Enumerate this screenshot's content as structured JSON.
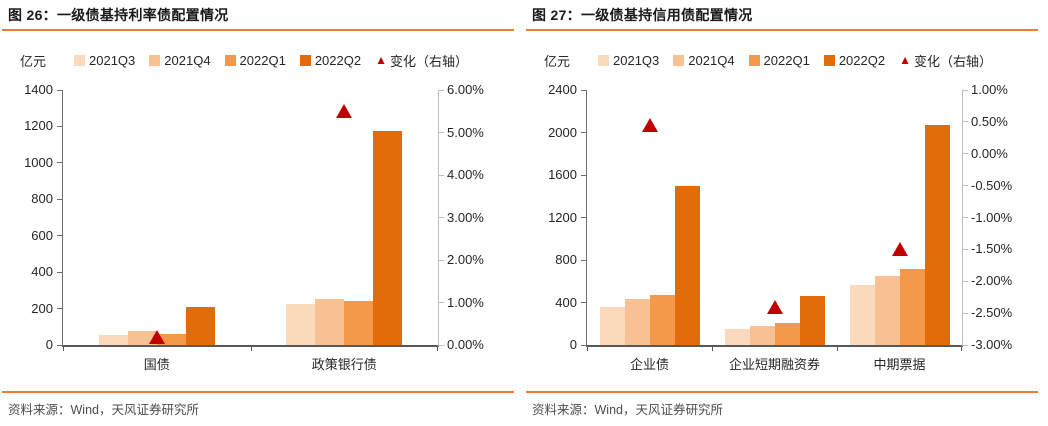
{
  "colors": {
    "rule_orange": "#ED7D31",
    "title_text": "#1a1a1a",
    "axis_text": "#262626",
    "source_text": "#4d4d4d",
    "left_axis_line": "#6e6e6e",
    "right_axis_line": "#bfbfbf",
    "bottom_axis_line": "#595959",
    "series_2021q3": "#FAD9BD",
    "series_2021q4": "#F8C193",
    "series_2022q1": "#F4984A",
    "series_2022q2": "#E26C09",
    "change_triangle": "#C00000"
  },
  "chart_data": [
    {
      "type": "bar",
      "title": "图 26：一级债基持利率债配置情况",
      "unit": "亿元",
      "source_note": "资料来源：Wind，天风证券研究所",
      "categories": [
        "国债",
        "政策银行债"
      ],
      "series": [
        {
          "name": "2021Q3",
          "type": "bar",
          "axis": "left",
          "color": "#FAD9BD",
          "values": [
            55,
            225
          ]
        },
        {
          "name": "2021Q4",
          "type": "bar",
          "axis": "left",
          "color": "#F8C193",
          "values": [
            75,
            250
          ]
        },
        {
          "name": "2022Q1",
          "type": "bar",
          "axis": "left",
          "color": "#F4984A",
          "values": [
            60,
            240
          ]
        },
        {
          "name": "2022Q2",
          "type": "bar",
          "axis": "left",
          "color": "#E26C09",
          "values": [
            210,
            1175
          ]
        },
        {
          "name": "变化（右轴）",
          "type": "triangle",
          "axis": "right",
          "color": "#C00000",
          "values": [
            0.2,
            5.5
          ]
        }
      ],
      "left_axis": {
        "min": 0,
        "max": 1400,
        "step": 200
      },
      "right_axis": {
        "min": 0,
        "max": 6,
        "step": 1,
        "format": "percent2"
      },
      "grid": false,
      "legend_position": "top"
    },
    {
      "type": "bar",
      "title": "图 27：一级债基持信用债配置情况",
      "unit": "亿元",
      "source_note": "资料来源：Wind，天风证券研究所",
      "categories": [
        "企业债",
        "企业短期融资券",
        "中期票据"
      ],
      "series": [
        {
          "name": "2021Q3",
          "type": "bar",
          "axis": "left",
          "color": "#FAD9BD",
          "values": [
            360,
            150,
            565
          ]
        },
        {
          "name": "2021Q4",
          "type": "bar",
          "axis": "left",
          "color": "#F8C193",
          "values": [
            430,
            180,
            650
          ]
        },
        {
          "name": "2022Q1",
          "type": "bar",
          "axis": "left",
          "color": "#F4984A",
          "values": [
            470,
            210,
            715
          ]
        },
        {
          "name": "2022Q2",
          "type": "bar",
          "axis": "left",
          "color": "#E26C09",
          "values": [
            1495,
            460,
            2070
          ]
        },
        {
          "name": "变化（右轴）",
          "type": "triangle",
          "axis": "right",
          "color": "#C00000",
          "values": [
            0.45,
            -2.4,
            -1.5
          ]
        }
      ],
      "left_axis": {
        "min": 0,
        "max": 2400,
        "step": 400
      },
      "right_axis": {
        "min": -3,
        "max": 1,
        "step": 0.5,
        "format": "percent2"
      },
      "grid": false,
      "legend_position": "top"
    }
  ]
}
